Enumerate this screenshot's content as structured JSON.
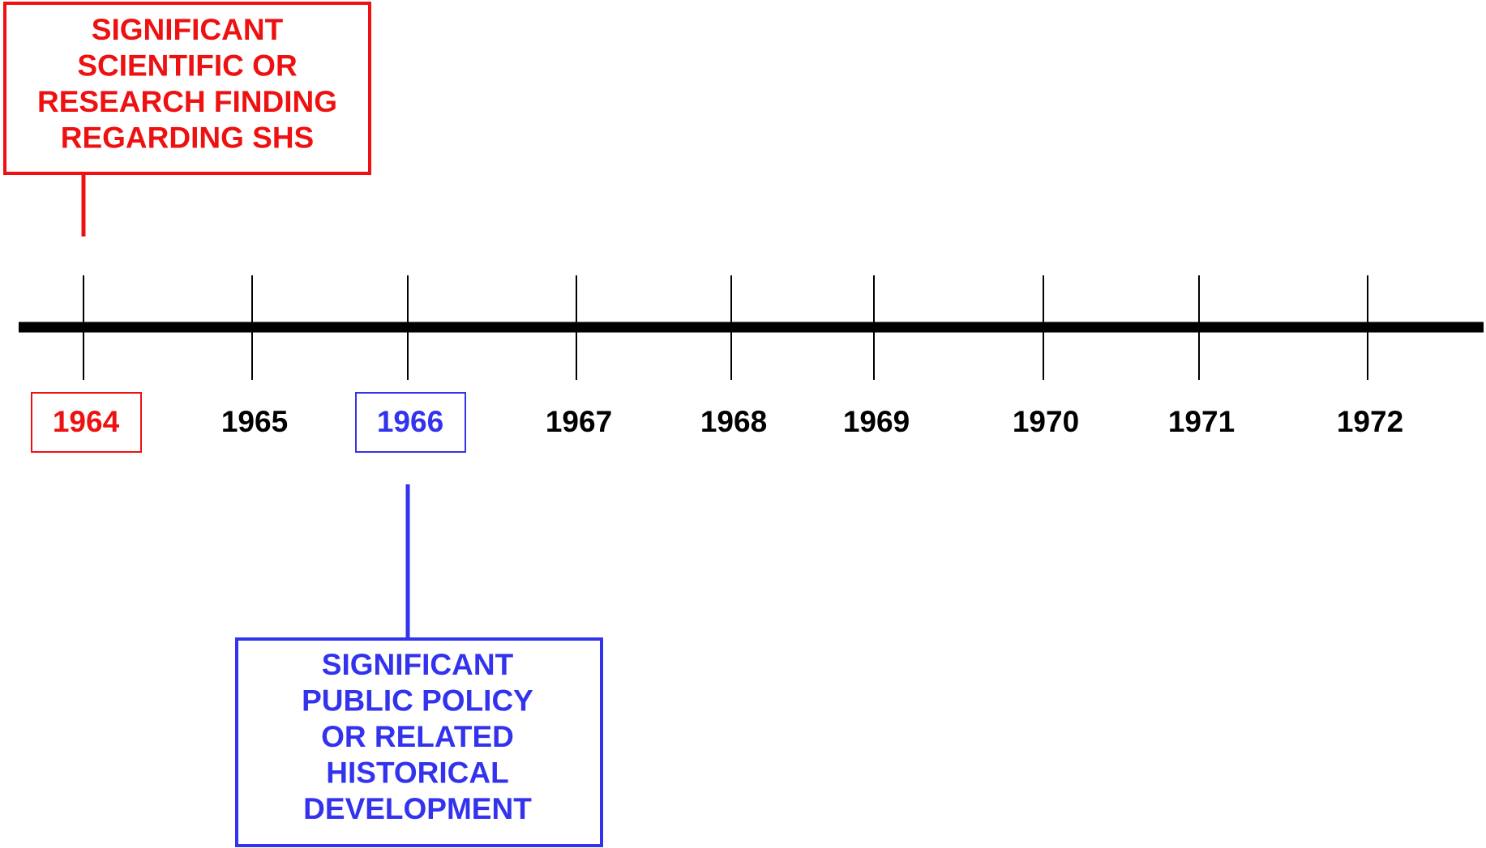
{
  "timeline": {
    "years": [
      1964,
      1965,
      1966,
      1967,
      1968,
      1969,
      1970,
      1971,
      1972
    ]
  },
  "legend": {
    "science": {
      "lines": [
        "SIGNIFICANT",
        "SCIENTIFIC OR",
        "RESEARCH FINDING",
        "REGARDING SHS"
      ],
      "color": "#ee1111",
      "year_index": 0
    },
    "policy": {
      "lines": [
        "SIGNIFICANT",
        "PUBLIC POLICY",
        "OR RELATED",
        "HISTORICAL",
        "DEVELOPMENT"
      ],
      "color": "#3333ee",
      "year_index": 2
    }
  }
}
